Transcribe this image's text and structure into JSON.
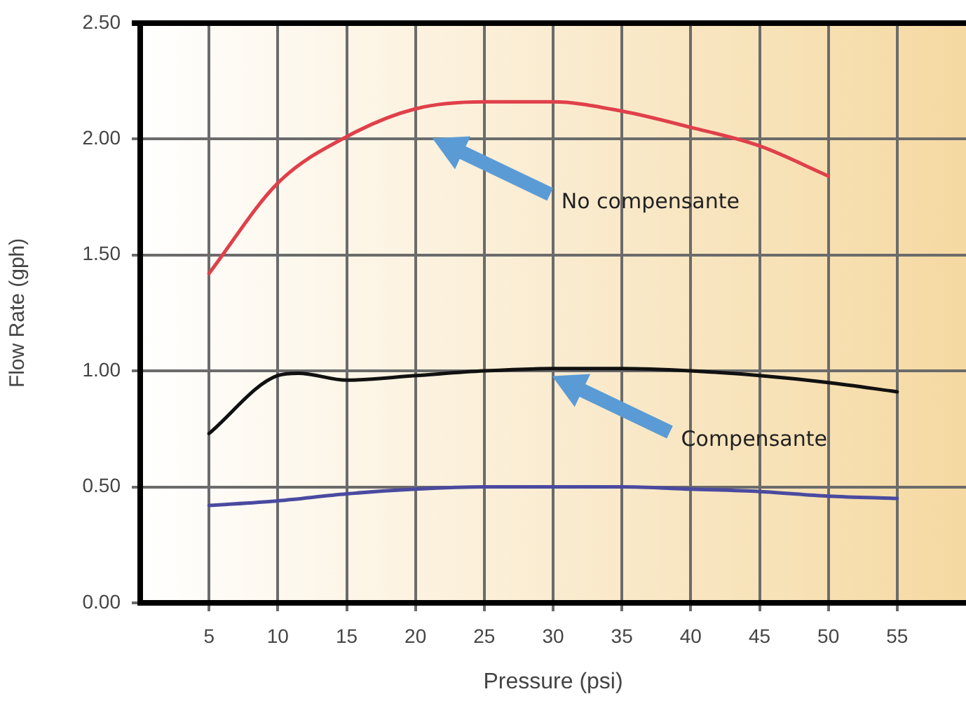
{
  "chart_data": {
    "type": "line",
    "xlabel": "Pressure (psi)",
    "ylabel": "Flow Rate (gph)",
    "xlim": [
      0,
      60
    ],
    "xticks": [
      5,
      10,
      15,
      20,
      25,
      30,
      35,
      40,
      45,
      50,
      55
    ],
    "ylim": [
      0,
      2.5
    ],
    "yticks": [
      {
        "value": 0,
        "label": "0.00"
      },
      {
        "value": 0.5,
        "label": "0.50"
      },
      {
        "value": 1,
        "label": "1.00"
      },
      {
        "value": 1.5,
        "label": "1.50"
      },
      {
        "value": 2,
        "label": "2.00"
      },
      {
        "value": 2.5,
        "label": "2.50"
      }
    ],
    "grid": true,
    "legend": false,
    "marker": "none",
    "series": [
      {
        "color": "#e0404a",
        "x": [
          5,
          10,
          15,
          20,
          25,
          30,
          35,
          40,
          45,
          50
        ],
        "values": [
          1.42,
          1.81,
          2.01,
          2.13,
          2.16,
          2.16,
          2.12,
          2.05,
          1.97,
          1.84
        ]
      },
      {
        "color": "#111111",
        "x": [
          5,
          10,
          11.5,
          15,
          20,
          25,
          30,
          35,
          40,
          45,
          50,
          55
        ],
        "values": [
          0.73,
          0.98,
          0.99,
          0.96,
          0.98,
          1.0,
          1.01,
          1.01,
          1.0,
          0.98,
          0.95,
          0.91
        ]
      },
      {
        "color": "#4a4aa0",
        "x": [
          5,
          10,
          15,
          20,
          25,
          30,
          35,
          40,
          45,
          50,
          55
        ],
        "values": [
          0.42,
          0.44,
          0.47,
          0.49,
          0.5,
          0.5,
          0.5,
          0.49,
          0.48,
          0.46,
          0.45
        ]
      }
    ],
    "annotations": [
      "No compensante",
      "Compensante"
    ]
  }
}
